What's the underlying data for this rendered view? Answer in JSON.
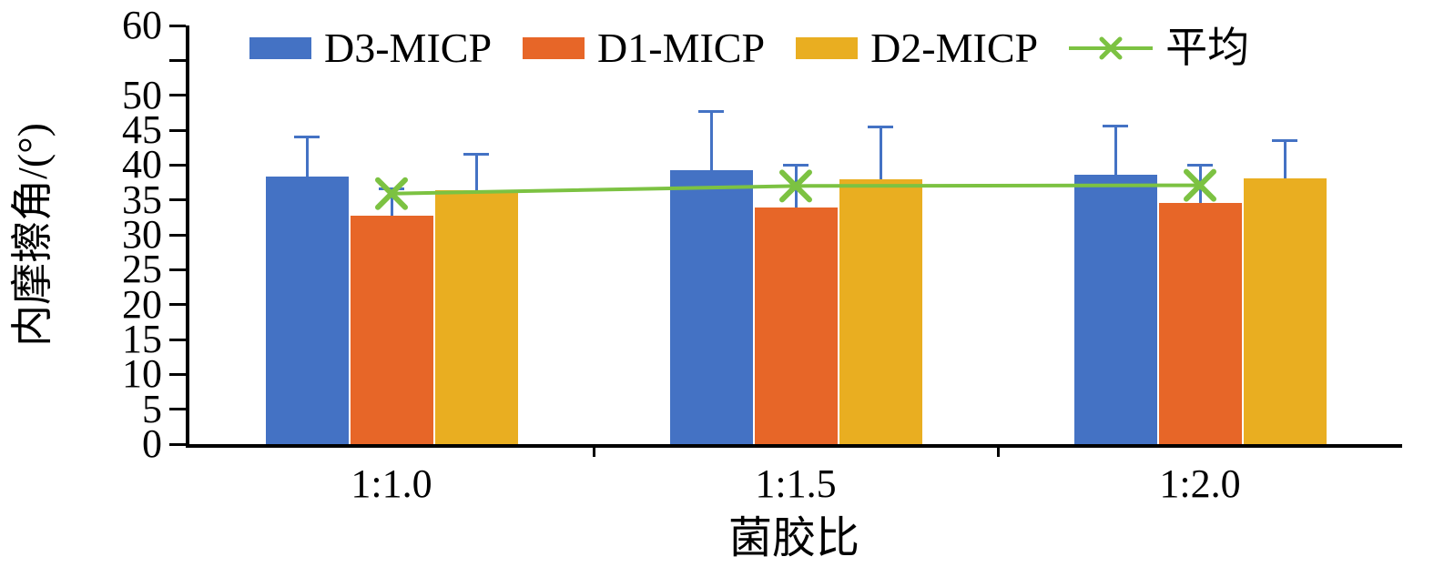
{
  "figure": {
    "background": "#ffffff"
  },
  "chart_data": {
    "type": "bar",
    "title": "",
    "xlabel": "菌胶比",
    "ylabel": "内摩擦角/(°)",
    "categories": [
      "1:1.0",
      "1:1.5",
      "1:2.0"
    ],
    "series": [
      {
        "name": "D3-MICP",
        "color": "#4472C4",
        "values": [
          38.4,
          39.3,
          38.6
        ],
        "errors_plus": [
          5.6,
          8.4,
          7.0
        ]
      },
      {
        "name": "D1-MICP",
        "color": "#E76628",
        "values": [
          32.8,
          33.9,
          34.6
        ],
        "errors_plus": [
          3.8,
          6.1,
          5.4
        ]
      },
      {
        "name": "D2-MICP",
        "color": "#E9AE21",
        "values": [
          36.4,
          37.9,
          38.1
        ],
        "errors_plus": [
          5.2,
          7.6,
          5.4
        ]
      }
    ],
    "average_series": {
      "name": "平均",
      "color": "#7CC242",
      "marker": "x",
      "values": [
        35.9,
        37.0,
        37.1
      ]
    },
    "error_bar_color": "#4472C4",
    "ylim": [
      0,
      60
    ],
    "ytick_labels": [
      0,
      5,
      10,
      15,
      20,
      25,
      30,
      35,
      40,
      45,
      50,
      60
    ],
    "ytick_marks": [
      0,
      5,
      10,
      15,
      20,
      25,
      30,
      35,
      40,
      45,
      50,
      55,
      60
    ],
    "grid": false,
    "legend_position": "top-inside"
  }
}
